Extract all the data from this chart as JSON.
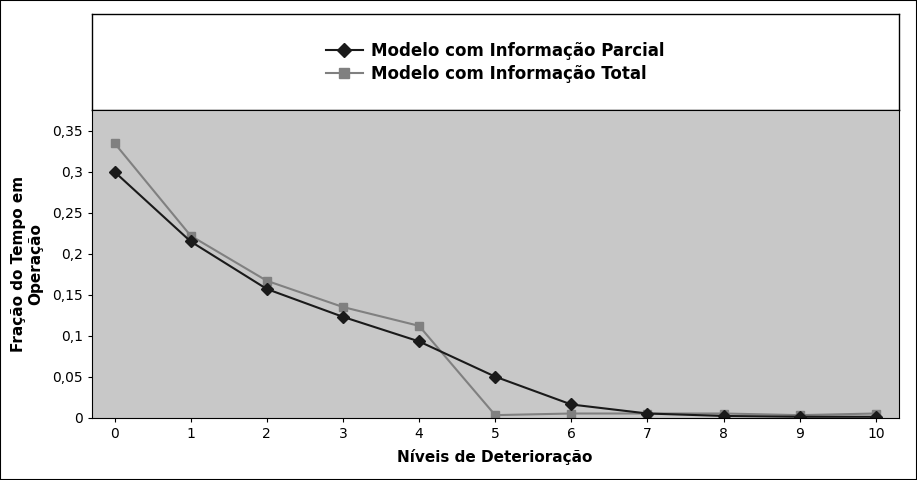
{
  "x": [
    0,
    1,
    2,
    3,
    4,
    5,
    6,
    7,
    8,
    9,
    10
  ],
  "parcial": [
    0.3,
    0.215,
    0.157,
    0.123,
    0.093,
    0.05,
    0.016,
    0.005,
    0.002,
    0.001,
    0.001
  ],
  "total": [
    0.335,
    0.222,
    0.167,
    0.135,
    0.112,
    0.003,
    0.005,
    0.005,
    0.005,
    0.003,
    0.005
  ],
  "parcial_color": "#1a1a1a",
  "total_color": "#808080",
  "plot_area_bg": "#c8c8c8",
  "ylabel_line1": "Fração do Tempo em",
  "ylabel_line2": "Operação",
  "xlabel": "Níveis de Deterioração",
  "legend_parcial": "Modelo com Informação Parcial",
  "legend_total": "Modelo com Informação Total",
  "ylim": [
    0,
    0.375
  ],
  "yticks": [
    0,
    0.05,
    0.1,
    0.15,
    0.2,
    0.25,
    0.3,
    0.35
  ],
  "axis_fontsize": 11,
  "tick_fontsize": 10,
  "legend_fontsize": 12
}
